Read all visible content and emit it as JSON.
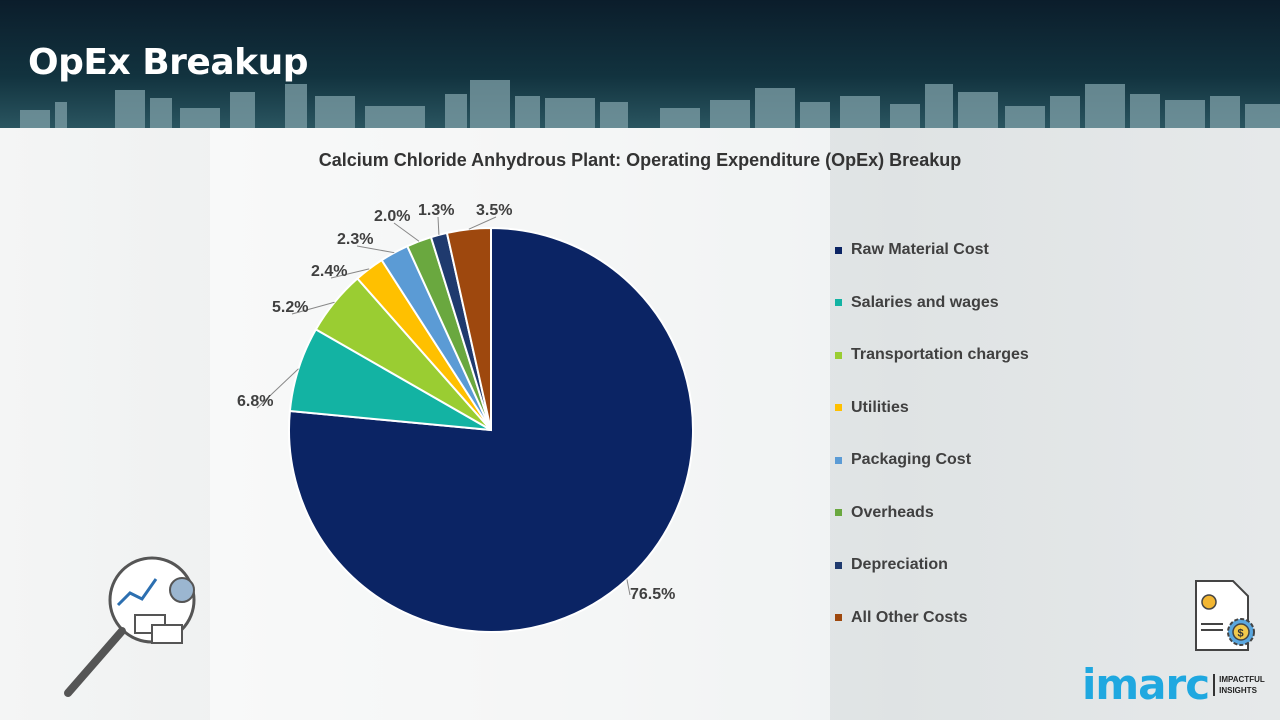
{
  "header": {
    "title": "OpEx Breakup"
  },
  "chart_data": {
    "type": "pie",
    "title": "Calcium Chloride Anhydrous Plant: Operating Expenditure (OpEx) Breakup",
    "categories": [
      "Raw Material Cost",
      "Salaries and wages",
      "Transportation charges",
      "Utilities",
      "Packaging Cost",
      "Overheads",
      "Depreciation",
      "All Other Costs"
    ],
    "values": [
      76.5,
      6.8,
      5.2,
      2.4,
      2.3,
      2.0,
      1.3,
      3.5
    ],
    "labels": [
      "76.5%",
      "6.8%",
      "5.2%",
      "2.4%",
      "2.3%",
      "2.0%",
      "1.3%",
      "3.5%"
    ],
    "colors": [
      "#0b2464",
      "#13b3a3",
      "#9acd32",
      "#ffc000",
      "#5b9bd5",
      "#6aa83f",
      "#1f3a6e",
      "#9e480e"
    ],
    "legend_position": "right",
    "start": "top-clockwise"
  },
  "logo": {
    "name": "imarc",
    "tagline1": "IMPACTFUL",
    "tagline2": "INSIGHTS"
  }
}
